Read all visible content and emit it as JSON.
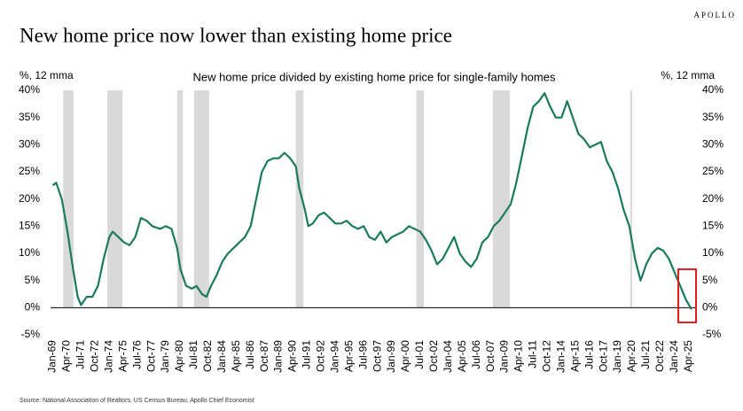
{
  "brand": "APOLLO",
  "chart_data": {
    "type": "line",
    "title": "New home price now lower than existing home price",
    "subtitle": "New home price divided by existing home price for single-family homes",
    "ylabel": "%, 12 mma",
    "y2label": "%, 12 mma",
    "source": "Source: National Association of Realtors, US Census Bureau, Apollo Chief Economist",
    "x": [
      1969.0,
      1969.3,
      1969.8,
      1970.3,
      1970.8,
      1971.2,
      1971.5,
      1972.0,
      1972.5,
      1973.0,
      1973.5,
      1974.0,
      1974.3,
      1974.8,
      1975.3,
      1975.8,
      1976.3,
      1976.8,
      1977.3,
      1977.8,
      1978.5,
      1979.0,
      1979.5,
      1980.0,
      1980.3,
      1980.8,
      1981.3,
      1981.7,
      1982.2,
      1982.6,
      1983.0,
      1983.5,
      1984.0,
      1984.5,
      1985.0,
      1985.5,
      1986.0,
      1986.5,
      1987.0,
      1987.5,
      1988.0,
      1988.5,
      1989.0,
      1989.5,
      1990.0,
      1990.5,
      1990.8,
      1991.3,
      1991.6,
      1992.0,
      1992.5,
      1993.0,
      1993.5,
      1994.0,
      1994.5,
      1995.0,
      1995.5,
      1996.0,
      1996.5,
      1997.0,
      1997.5,
      1998.0,
      1998.5,
      1999.0,
      1999.5,
      2000.0,
      2000.5,
      2001.0,
      2001.5,
      2002.0,
      2002.5,
      2003.0,
      2003.5,
      2004.0,
      2004.5,
      2005.0,
      2005.5,
      2006.0,
      2006.5,
      2007.0,
      2007.5,
      2008.0,
      2008.5,
      2009.0,
      2009.5,
      2010.0,
      2010.5,
      2011.0,
      2011.5,
      2012.0,
      2012.5,
      2013.0,
      2013.5,
      2014.0,
      2014.5,
      2015.0,
      2015.5,
      2016.0,
      2016.5,
      2017.0,
      2017.5,
      2018.0,
      2018.5,
      2019.0,
      2019.5,
      2020.0,
      2020.5,
      2021.0,
      2021.5,
      2022.0,
      2022.5,
      2023.0,
      2023.5,
      2024.0,
      2024.5,
      2025.0,
      2025.5
    ],
    "series": [
      {
        "color": "#1a7a5e",
        "values": [
          22.5,
          23,
          20,
          14,
          7,
          2,
          0.5,
          2,
          2,
          4,
          9,
          13,
          14,
          13,
          12,
          11.5,
          13,
          16.5,
          16,
          15,
          14.5,
          15,
          14.5,
          11,
          7,
          4,
          3.5,
          4,
          2.5,
          2,
          4,
          6,
          8.5,
          10,
          11,
          12,
          13,
          15,
          20,
          25,
          27,
          27.5,
          27.5,
          28.5,
          27.5,
          26,
          22,
          18,
          15,
          15.5,
          17,
          17.5,
          16.5,
          15.5,
          15.5,
          16,
          15,
          14.5,
          15,
          13,
          12.5,
          14,
          12,
          13,
          13.5,
          14,
          15,
          14.5,
          14,
          12.5,
          10.5,
          8,
          9,
          11,
          13,
          10,
          8.5,
          7.5,
          9,
          12,
          13,
          15,
          16,
          17.5,
          19,
          23,
          28,
          33,
          37,
          38,
          39.5,
          37,
          35,
          35,
          38,
          35,
          32,
          31,
          29.5,
          30,
          30.5,
          27,
          25,
          22,
          18,
          15,
          9,
          5,
          8,
          10,
          11,
          10.5,
          9,
          6.5,
          4,
          1.5,
          -0.3
        ]
      }
    ],
    "recessions": [
      [
        1969.92,
        1970.83
      ],
      [
        1973.83,
        1975.17
      ],
      [
        1980.0,
        1980.5
      ],
      [
        1981.5,
        1982.83
      ],
      [
        1990.5,
        1991.17
      ],
      [
        2001.17,
        2001.83
      ],
      [
        2007.92,
        2009.42
      ],
      [
        2020.08,
        2020.25
      ]
    ],
    "recession_color": "#d9d9d9",
    "xlim": [
      1968.8,
      2025.9
    ],
    "xticks": [
      {
        "value": 1969,
        "label": "Jan-69"
      },
      {
        "value": 1970.25,
        "label": "Apr-70"
      },
      {
        "value": 1971.5,
        "label": "Jul-71"
      },
      {
        "value": 1972.75,
        "label": "Oct-72"
      },
      {
        "value": 1974,
        "label": "Jan-74"
      },
      {
        "value": 1975.25,
        "label": "Apr-75"
      },
      {
        "value": 1976.5,
        "label": "Jul-76"
      },
      {
        "value": 1977.75,
        "label": "Oct-77"
      },
      {
        "value": 1979,
        "label": "Jan-79"
      },
      {
        "value": 1980.25,
        "label": "Apr-80"
      },
      {
        "value": 1981.5,
        "label": "Jul-81"
      },
      {
        "value": 1982.75,
        "label": "Oct-82"
      },
      {
        "value": 1984,
        "label": "Jan-84"
      },
      {
        "value": 1985.25,
        "label": "Apr-85"
      },
      {
        "value": 1986.5,
        "label": "Jul-86"
      },
      {
        "value": 1987.75,
        "label": "Oct-87"
      },
      {
        "value": 1989,
        "label": "Jan-89"
      },
      {
        "value": 1990.25,
        "label": "Apr-90"
      },
      {
        "value": 1991.5,
        "label": "Jul-91"
      },
      {
        "value": 1992.75,
        "label": "Oct-92"
      },
      {
        "value": 1994,
        "label": "Jan-94"
      },
      {
        "value": 1995.25,
        "label": "Apr-95"
      },
      {
        "value": 1996.5,
        "label": "Jul-96"
      },
      {
        "value": 1997.75,
        "label": "Oct-97"
      },
      {
        "value": 1999,
        "label": "Jan-99"
      },
      {
        "value": 2000.25,
        "label": "Apr-00"
      },
      {
        "value": 2001.5,
        "label": "Jul-01"
      },
      {
        "value": 2002.75,
        "label": "Oct-02"
      },
      {
        "value": 2004,
        "label": "Jan-04"
      },
      {
        "value": 2005.25,
        "label": "Apr-05"
      },
      {
        "value": 2006.5,
        "label": "Jul-06"
      },
      {
        "value": 2007.75,
        "label": "Oct-07"
      },
      {
        "value": 2009,
        "label": "Jan-09"
      },
      {
        "value": 2010.25,
        "label": "Apr-10"
      },
      {
        "value": 2011.5,
        "label": "Jul-11"
      },
      {
        "value": 2012.75,
        "label": "Oct-12"
      },
      {
        "value": 2014,
        "label": "Jan-14"
      },
      {
        "value": 2015.25,
        "label": "Apr-15"
      },
      {
        "value": 2016.5,
        "label": "Jul-16"
      },
      {
        "value": 2017.75,
        "label": "Oct-17"
      },
      {
        "value": 2019,
        "label": "Jan-19"
      },
      {
        "value": 2020.25,
        "label": "Apr-20"
      },
      {
        "value": 2021.5,
        "label": "Jul-21"
      },
      {
        "value": 2022.75,
        "label": "Oct-22"
      },
      {
        "value": 2024,
        "label": "Jan-24"
      },
      {
        "value": 2025.25,
        "label": "Apr-25"
      }
    ],
    "ylim": [
      -5,
      40
    ],
    "yticks": [
      {
        "value": 40,
        "label": "40%"
      },
      {
        "value": 35,
        "label": "35%"
      },
      {
        "value": 30,
        "label": "30%"
      },
      {
        "value": 25,
        "label": "25%"
      },
      {
        "value": 20,
        "label": "20%"
      },
      {
        "value": 15,
        "label": "15%"
      },
      {
        "value": 10,
        "label": "10%"
      },
      {
        "value": 5,
        "label": "5%"
      },
      {
        "value": 0,
        "label": "0%"
      },
      {
        "value": -5,
        "label": "-5%"
      }
    ],
    "y2lim": [
      -5,
      40
    ],
    "y2ticks": [
      {
        "value": 40,
        "label": "40%"
      },
      {
        "value": 35,
        "label": "35%"
      },
      {
        "value": 30,
        "label": "30%"
      },
      {
        "value": 25,
        "label": "25%"
      },
      {
        "value": 20,
        "label": "20%"
      },
      {
        "value": 15,
        "label": "15%"
      },
      {
        "value": 10,
        "label": "10%"
      },
      {
        "value": 5,
        "label": "5%"
      },
      {
        "value": 0,
        "label": "0%"
      },
      {
        "value": -5,
        "label": "-5%"
      }
    ]
  }
}
